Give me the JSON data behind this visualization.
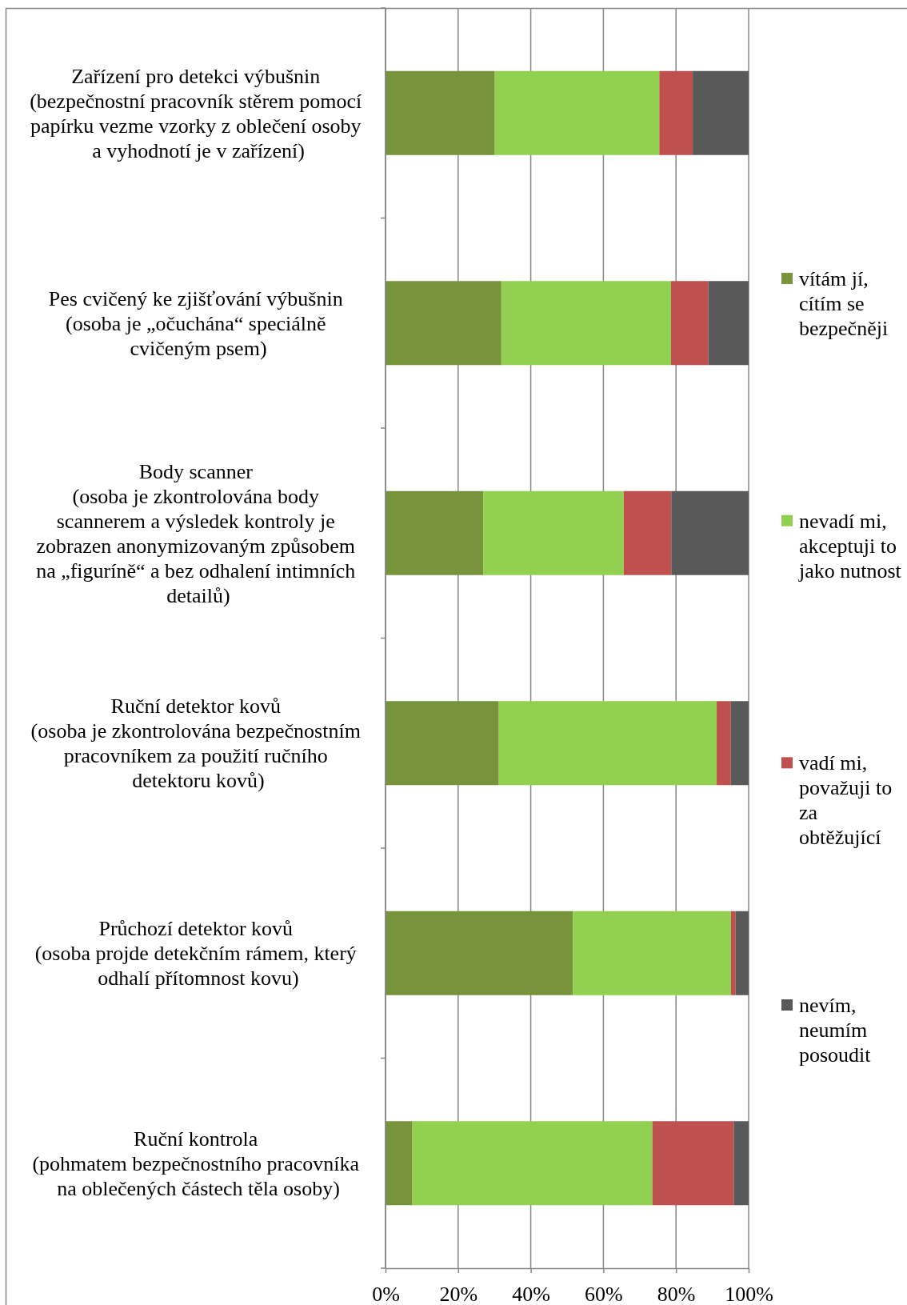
{
  "chart_data": {
    "type": "bar",
    "orientation": "horizontal",
    "stacked": true,
    "categories": [
      "Zařízení pro detekci výbušnin\n(bezpečnostní pracovník stěrem pomocí\npapírku vezme vzorky z oblečení osoby\na vyhodnotí je v zařízení)",
      "Pes cvičený ke zjišťování výbušnin\n(osoba je „očuchána“ speciálně\ncvičeným psem)",
      "Body scanner\n(osoba je zkontrolována body\nscannerem a výsledek kontroly je\nzobrazen anonymizovaným způsobem\nna „figuríně“ a bez odhalení intimních\ndetailů)",
      "Ruční detektor kovů\n(osoba je zkontrolována bezpečnostním\npracovníkem za použití ručního\ndetektoru kovů)",
      "Průchozí detektor kovů\n(osoba projde detekčním rámem, který\nodhalí přítomnost kovu)",
      "Ruční kontrola\n(pohmatem bezpečnostního pracovníka\nna oblečených částech těla osoby)"
    ],
    "series": [
      {
        "name": "vítám jí,\ncítím se\nbezpečněji",
        "color": "#77933c",
        "values": [
          30.1,
          31.9,
          26.9,
          31.2,
          51.6,
          7.4
        ]
      },
      {
        "name": "nevadí mi,\nakceptuji to\njako nutnost",
        "color": "#92d050",
        "values": [
          45.3,
          46.7,
          38.7,
          60.0,
          43.5,
          66.1
        ]
      },
      {
        "name": "vadí mi,\npovažuji to\nza\nobtěžující",
        "color": "#c0504d",
        "values": [
          9.2,
          10.3,
          13.1,
          3.9,
          1.3,
          22.4
        ]
      },
      {
        "name": "nevím,\nneumím\nposoudit",
        "color": "#595959",
        "values": [
          15.4,
          11.1,
          21.3,
          4.9,
          3.6,
          4.1
        ]
      }
    ],
    "xlim": [
      0,
      100
    ],
    "xticks": [
      {
        "value": 0,
        "label": "0%"
      },
      {
        "value": 20,
        "label": "20%"
      },
      {
        "value": 40,
        "label": "40%"
      },
      {
        "value": 60,
        "label": "60%"
      },
      {
        "value": 80,
        "label": "80%"
      },
      {
        "value": 100,
        "label": "100%"
      }
    ],
    "grid": "x",
    "legend": "right"
  }
}
